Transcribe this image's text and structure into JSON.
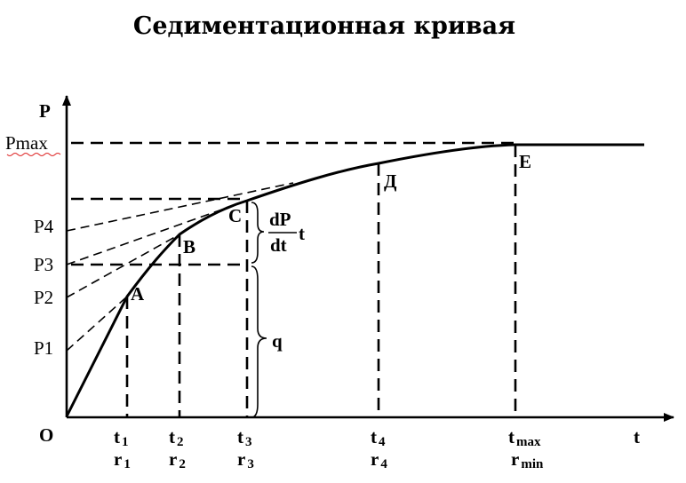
{
  "title": "Седиментационная кривая",
  "axes": {
    "y_label": "P",
    "x_label": "t",
    "origin": "O"
  },
  "y_ticks": {
    "pmax": "Pmax",
    "p4": "P4",
    "p3": "P3",
    "p2": "P2",
    "p1": "P1"
  },
  "points": {
    "a": "A",
    "b": "B",
    "c": "C",
    "d": "Д",
    "e": "E"
  },
  "x_ticks": [
    {
      "t": "t",
      "t_sub": "1",
      "r": "r",
      "r_sub": "1"
    },
    {
      "t": "t",
      "t_sub": "2",
      "r": "r",
      "r_sub": "2"
    },
    {
      "t": "t",
      "t_sub": "3",
      "r": "r",
      "r_sub": "3"
    },
    {
      "t": "t",
      "t_sub": "4",
      "r": "r",
      "r_sub": "4"
    },
    {
      "t": "t",
      "t_sub": "max",
      "r": "r",
      "r_sub": "min"
    }
  ],
  "annotations": {
    "derivative_num": "dP",
    "derivative_den": "dt",
    "derivative_t": "t",
    "q": "q"
  }
}
